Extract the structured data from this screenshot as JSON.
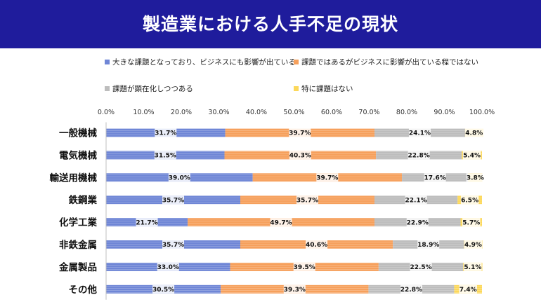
{
  "header": {
    "title": "製造業における人手不足の現状"
  },
  "chart_data": {
    "type": "bar",
    "orientation": "horizontal",
    "stacked": "percent",
    "title": "",
    "categories": [
      "一般機械",
      "電気機械",
      "輸送用機械",
      "鉄鋼業",
      "化学工業",
      "非鉄金属",
      "金属製品",
      "その他"
    ],
    "series": [
      {
        "name": "大きな課題となっており、ビジネスにも影響が出ている",
        "values": [
          31.7,
          31.5,
          39.0,
          35.7,
          21.7,
          35.7,
          33.0,
          30.5
        ],
        "color": "#6f86d6"
      },
      {
        "name": "課題ではあるがビジネスに影響が出ている程ではない",
        "values": [
          39.7,
          40.3,
          39.7,
          35.7,
          49.7,
          40.6,
          39.5,
          39.3
        ],
        "color": "#f6a05c"
      },
      {
        "name": "課題が顕在化しつつある",
        "values": [
          24.1,
          22.8,
          17.6,
          22.1,
          22.9,
          18.9,
          22.5,
          22.8
        ],
        "color": "#bdbdbd"
      },
      {
        "name": "特に課題はない",
        "values": [
          4.8,
          5.4,
          3.8,
          6.5,
          5.7,
          4.9,
          5.1,
          7.4
        ],
        "color": "#fcd85a"
      }
    ],
    "data_labels": [
      [
        "31.7%",
        "31.5%",
        "39.0%",
        "35.7%",
        "21.7%",
        "35.7%",
        "33.0%",
        "30.5%"
      ],
      [
        "39.7%",
        "40.3%",
        "39.7%",
        "35.7%",
        "49.7%",
        "40.6%",
        "39.5%",
        "39.3%"
      ],
      [
        "24.1%",
        "22.8%",
        "17.6%",
        "22.1%",
        "22.9%",
        "18.9%",
        "22.5%",
        "22.8%"
      ],
      [
        "4.8%",
        "5.4%",
        "3.8%",
        "6.5%",
        "5.7%",
        "4.9%",
        "5.1%",
        "7.4%"
      ]
    ],
    "x_ticks": [
      "0.0%",
      "10.0%",
      "20.0%",
      "30.0%",
      "40.0%",
      "50.0%",
      "60.0%",
      "70.0%",
      "80.0%",
      "90.0%",
      "100.0%"
    ],
    "xlim": [
      0,
      100
    ],
    "axis_position": "top",
    "grid": false,
    "legend_position": "top"
  }
}
